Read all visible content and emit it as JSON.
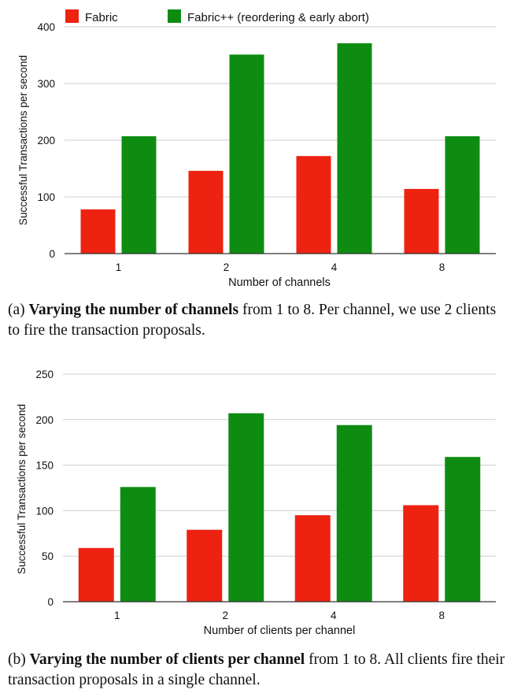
{
  "legend": {
    "series": [
      "Fabric",
      "Fabric++ (reordering & early abort)"
    ]
  },
  "colors": {
    "fabric": "#ee2211",
    "fabricpp": "#0e8c12",
    "grid": "#cfcfcf",
    "axis": "#333333"
  },
  "captions": {
    "a": {
      "prefix": "(a) ",
      "bold": "Varying the number of channels",
      "rest": " from 1 to 8. Per channel, we use 2 clients to fire the transaction proposals."
    },
    "b": {
      "prefix": "(b) ",
      "bold": "Varying the number of clients per channel",
      "rest": " from 1 to 8. All clients fire their transaction proposals in a single channel."
    }
  },
  "chart_data": [
    {
      "type": "bar",
      "categories": [
        "1",
        "2",
        "4",
        "8"
      ],
      "series": [
        {
          "name": "Fabric",
          "values": [
            78,
            146,
            172,
            114
          ]
        },
        {
          "name": "Fabric++ (reordering & early abort)",
          "values": [
            207,
            351,
            371,
            207
          ]
        }
      ],
      "xlabel": "Number of channels",
      "ylabel": "Successful Transactions per second",
      "ylim": [
        0,
        400
      ],
      "yticks": [
        0,
        100,
        200,
        300,
        400
      ],
      "grid": true,
      "legend_position": "top"
    },
    {
      "type": "bar",
      "categories": [
        "1",
        "2",
        "4",
        "8"
      ],
      "series": [
        {
          "name": "Fabric",
          "values": [
            59,
            79,
            95,
            106
          ]
        },
        {
          "name": "Fabric++ (reordering & early abort)",
          "values": [
            126,
            207,
            194,
            159
          ]
        }
      ],
      "xlabel": "Number of clients per channel",
      "ylabel": "Successful Transactions per second",
      "ylim": [
        0,
        250
      ],
      "yticks": [
        0,
        50,
        100,
        150,
        200,
        250
      ],
      "grid": true,
      "legend_position": "none"
    }
  ]
}
